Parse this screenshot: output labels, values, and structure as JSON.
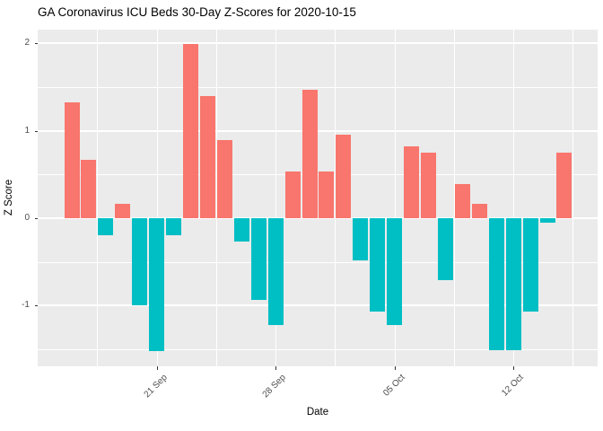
{
  "title": "GA Coronavirus ICU Beds 30-Day Z-Scores for 2020-10-15",
  "chart_data": {
    "type": "bar",
    "title": "GA Coronavirus ICU Beds 30-Day Z-Scores for 2020-10-15",
    "xlabel": "Date",
    "ylabel": "Z Score",
    "dates": [
      "2020-09-16",
      "2020-09-17",
      "2020-09-18",
      "2020-09-19",
      "2020-09-20",
      "2020-09-21",
      "2020-09-22",
      "2020-09-23",
      "2020-09-24",
      "2020-09-25",
      "2020-09-26",
      "2020-09-27",
      "2020-09-28",
      "2020-09-29",
      "2020-09-30",
      "2020-10-01",
      "2020-10-02",
      "2020-10-03",
      "2020-10-04",
      "2020-10-05",
      "2020-10-06",
      "2020-10-07",
      "2020-10-08",
      "2020-10-09",
      "2020-10-10",
      "2020-10-11",
      "2020-10-12",
      "2020-10-13",
      "2020-10-14",
      "2020-10-15"
    ],
    "values": [
      1.33,
      0.67,
      -0.2,
      0.16,
      -1.0,
      -1.52,
      -0.2,
      1.99,
      1.4,
      0.89,
      -0.27,
      -0.93,
      -1.22,
      0.53,
      1.47,
      0.53,
      0.96,
      -0.48,
      -1.07,
      -1.22,
      0.82,
      0.75,
      -0.71,
      0.39,
      0.16,
      -1.51,
      -1.51,
      -1.07,
      -0.05,
      0.75
    ],
    "bar_colors": {
      "positive": "#F8766D",
      "negative": "#00BFC4"
    },
    "ylim": [
      -1.695,
      2.158
    ],
    "yticks": {
      "values": [
        2,
        1,
        0,
        -1
      ],
      "labels": [
        "2",
        "1",
        "0",
        "-1"
      ]
    },
    "y_minor": [
      1.5,
      0.5,
      -0.5,
      -1.5
    ],
    "xticks": [
      {
        "date": "2020-09-21",
        "label": "21 Sep"
      },
      {
        "date": "2020-09-28",
        "label": "28 Sep"
      },
      {
        "date": "2020-10-05",
        "label": "05 Oct"
      },
      {
        "date": "2020-10-12",
        "label": "12 Oct"
      }
    ],
    "panel_background": "#EBEBEB",
    "grid_color": "#FFFFFF",
    "legend": "none"
  }
}
